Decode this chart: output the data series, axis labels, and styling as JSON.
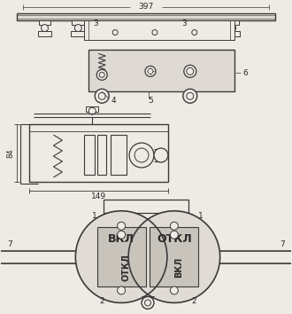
{
  "bg_color": "#eeebe4",
  "line_color": "#3a3a3a",
  "text_color": "#2a2a2a",
  "label_397": "397",
  "label_84": "84",
  "label_149": "149",
  "label_vcl": "ВКЛ",
  "label_otkl": "ОТКЛ",
  "label_vcl2": "ВКЛ",
  "label_otkl2": "ОТКЛ",
  "lc": "#3a3a3a",
  "panel_fill": "#dedad3",
  "circle_fill": "#e0dcd5",
  "inner_rect_fill": "#c8c4bc"
}
